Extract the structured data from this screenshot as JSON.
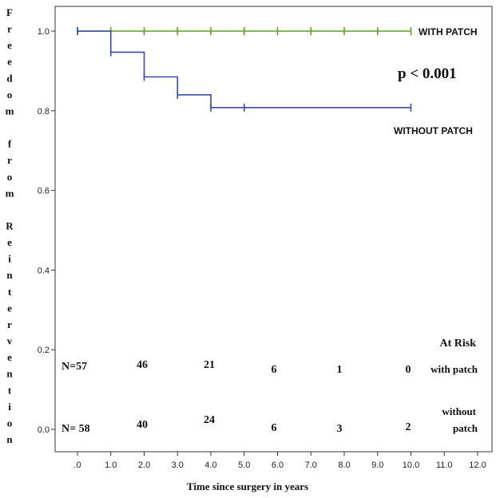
{
  "chart_data": {
    "type": "line",
    "xlabel": "Time since surgery in years",
    "ylabel": "Freedom from Reintervention",
    "x_ticks": [
      ".0",
      "1.0",
      "2.0",
      "3.0",
      "4.0",
      "5.0",
      "6.0",
      "7.0",
      "8.0",
      "9.0",
      "10.0",
      "11.0",
      "12.0"
    ],
    "y_ticks": [
      "0.0",
      "0.2",
      "0.4",
      "0.6",
      "0.8",
      "1.0"
    ],
    "xlim": [
      0,
      12
    ],
    "ylim": [
      0,
      1
    ],
    "grid": false,
    "series": [
      {
        "name": "WITH PATCH",
        "color": "#5aa02c",
        "step_x": [
          0,
          10
        ],
        "step_y": [
          1.0,
          1.0
        ],
        "censor_x": [
          0,
          1,
          2,
          3,
          4,
          5,
          6,
          7,
          8,
          9,
          10
        ],
        "censor_y": [
          1.0,
          1.0,
          1.0,
          1.0,
          1.0,
          1.0,
          1.0,
          1.0,
          1.0,
          1.0,
          1.0
        ]
      },
      {
        "name": "WITHOUT PATCH",
        "color": "#3a4aa8",
        "step_x": [
          0,
          1,
          2,
          3,
          4,
          10
        ],
        "step_y": [
          1.0,
          0.947,
          0.885,
          0.84,
          0.808,
          0.808
        ],
        "censor_x": [
          0,
          1,
          2,
          3,
          4,
          5,
          10
        ],
        "censor_y": [
          1.0,
          0.947,
          0.885,
          0.84,
          0.808,
          0.808,
          0.808
        ]
      }
    ],
    "p_value": "p < 0.001",
    "at_risk": {
      "title": "At Risk",
      "rows": [
        {
          "label": "N=57",
          "counts": [
            "46",
            "21",
            "6",
            "1",
            "0"
          ],
          "group_lines": [
            "with patch"
          ]
        },
        {
          "label": "N= 58",
          "counts": [
            "40",
            "24",
            "6",
            "3",
            "2"
          ],
          "group_lines": [
            "without",
            "patch"
          ]
        }
      ]
    }
  }
}
